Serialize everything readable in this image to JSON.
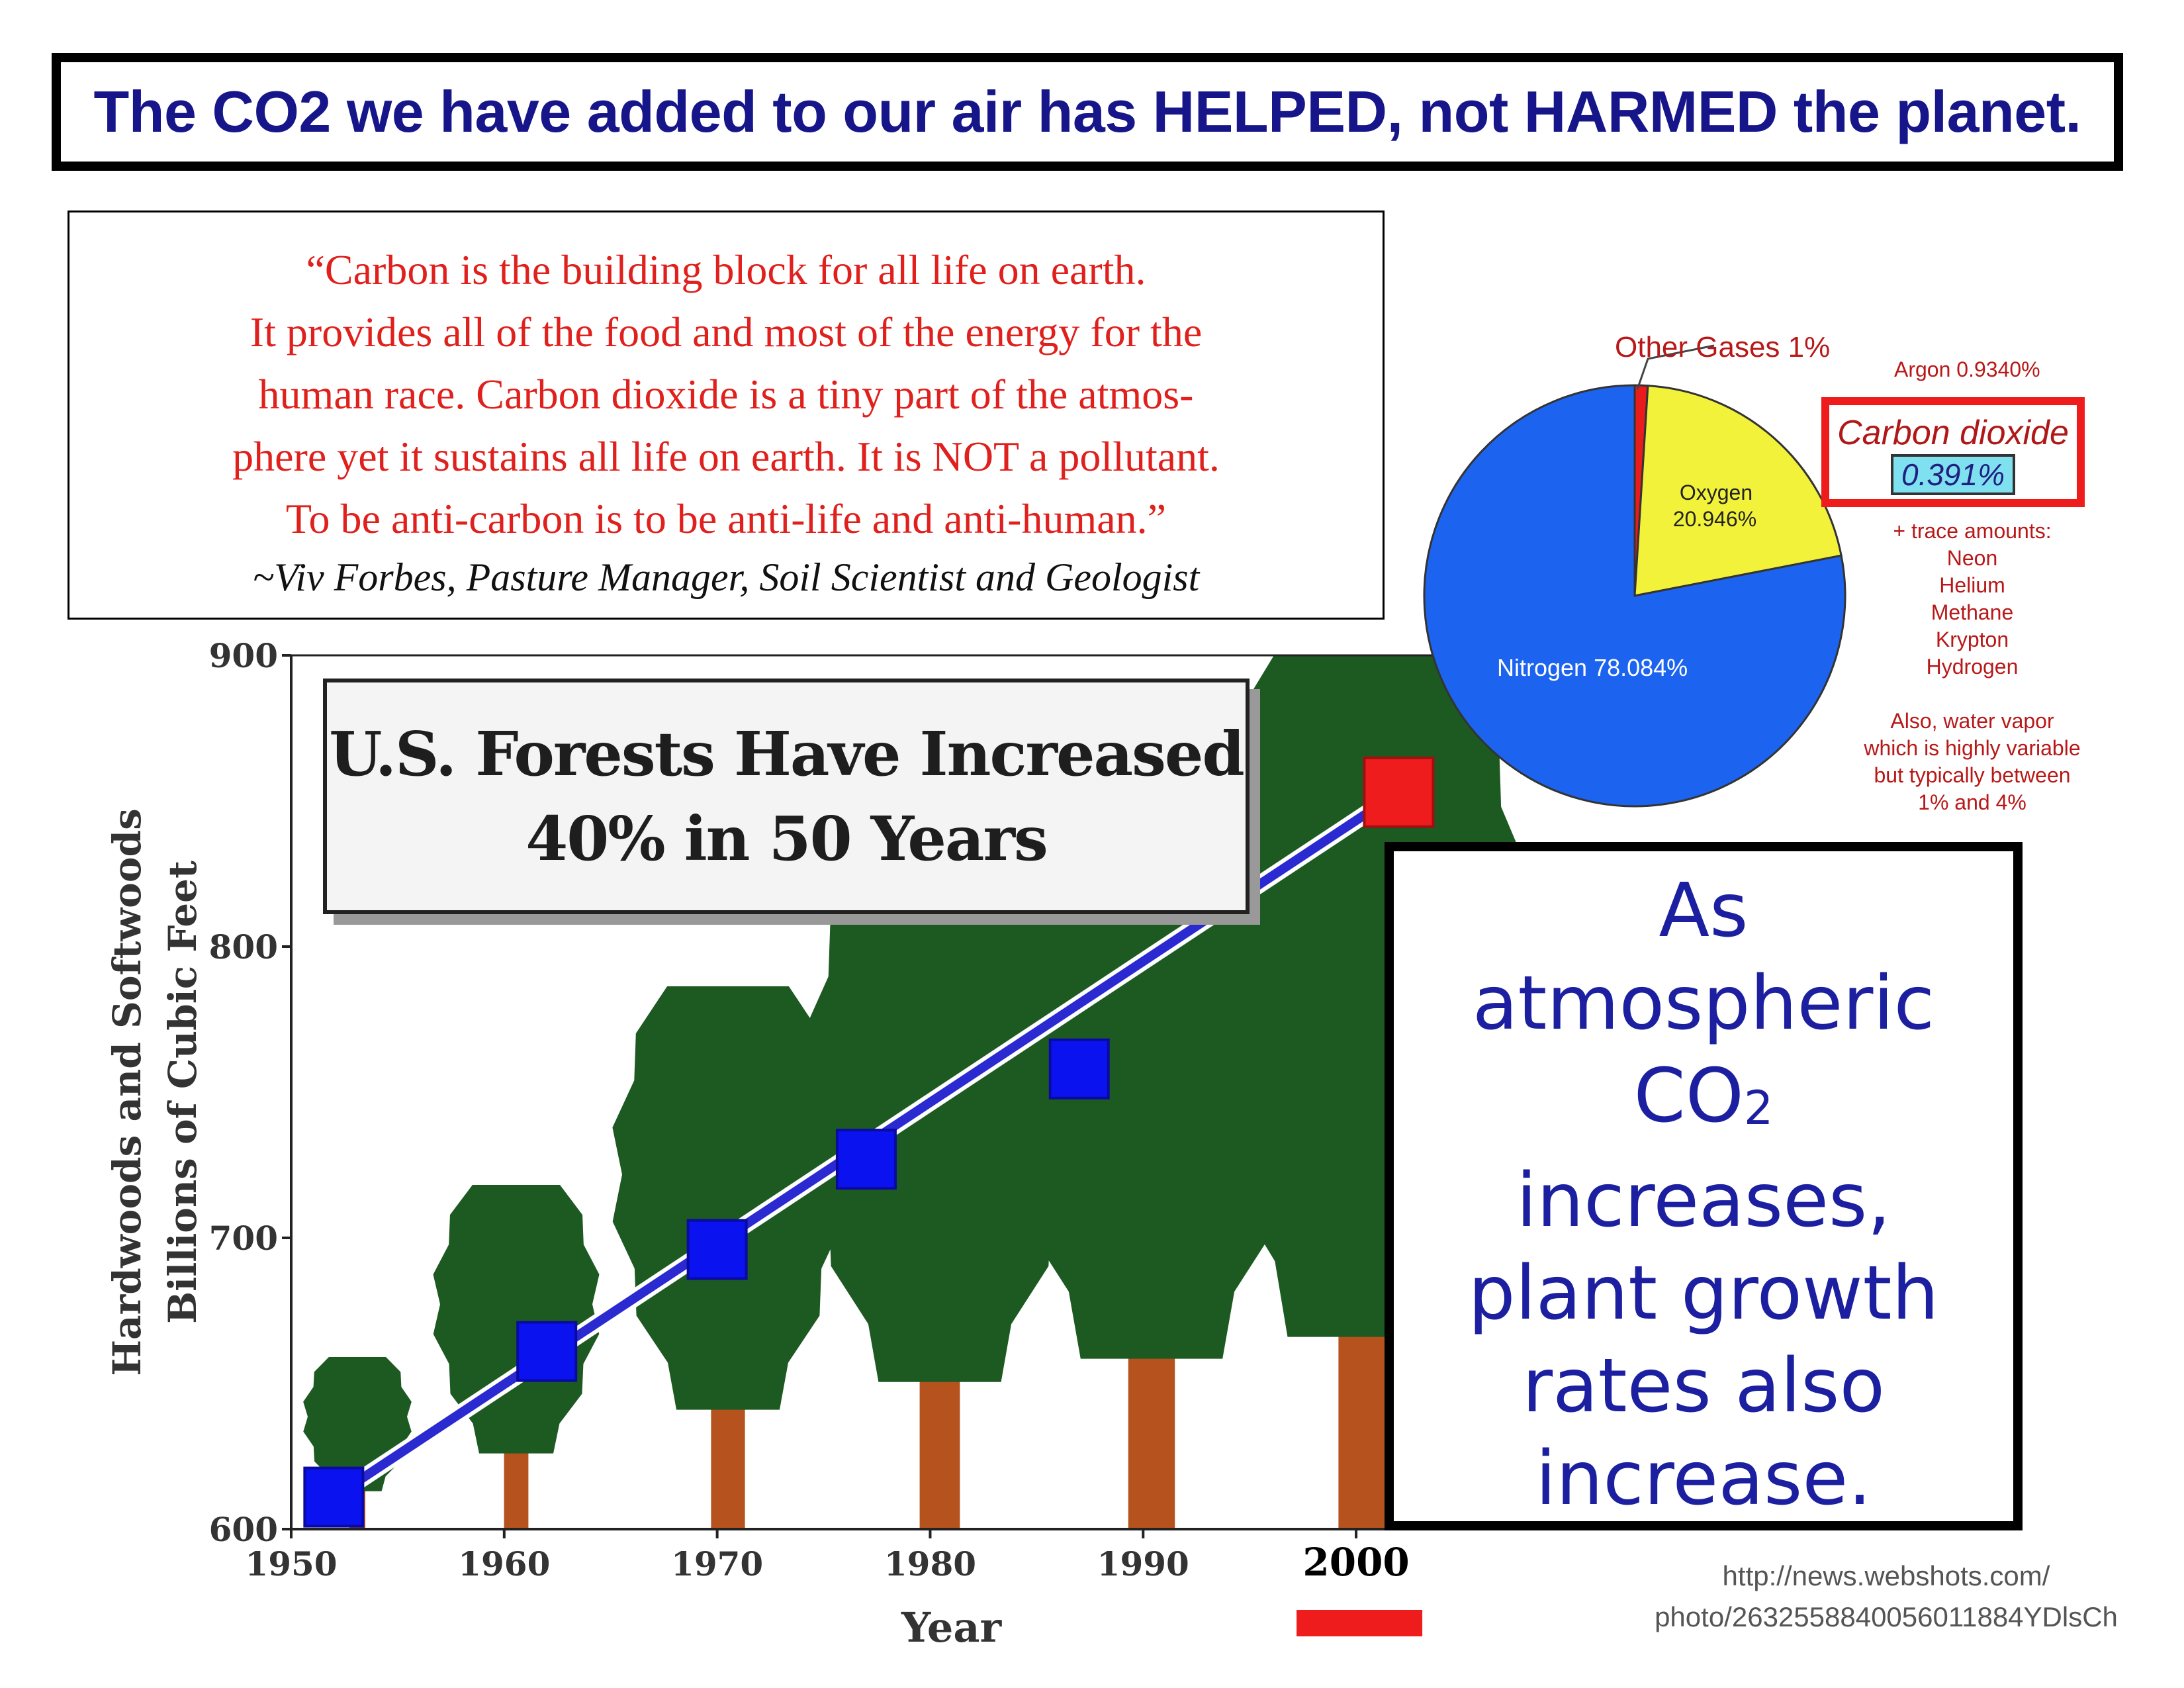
{
  "headline": "The CO2 we have added to our air has HELPED, not HARMED the planet.",
  "quote": {
    "lines": [
      "“Carbon is the building block for all life on earth.",
      "It provides all of the food and most of the energy for the",
      "human race. Carbon dioxide is a tiny part of the atmos-",
      "phere yet it sustains all life on earth. It is NOT a pollutant.",
      "To be anti-carbon is to be anti-life and anti-human.”"
    ],
    "attribution": "~Viv Forbes, Pasture Manager, Soil Scientist and Geologist"
  },
  "forest_box": {
    "line1": "U.S. Forests Have Increased",
    "line2": "40% in 50 Years"
  },
  "callout": {
    "lines": [
      "As",
      "atmospheric",
      "CO",
      "increases,",
      "plant growth",
      "rates also",
      "increase."
    ],
    "co2_subscript": "2"
  },
  "pie_labels": {
    "other": "Other Gases 1%",
    "argon": "Argon 0.9340%",
    "co2_label": "Carbon dioxide",
    "co2_value": "0.391%",
    "oxygen_name": "Oxygen",
    "oxygen_value": "20.946%",
    "nitrogen": "Nitrogen 78.084%",
    "trace": [
      "+ trace amounts:",
      "Neon",
      "Helium",
      "Methane",
      "Krypton",
      "Hydrogen",
      "",
      "Also, water vapor",
      "which is highly variable",
      "but typically between",
      "1% and 4%"
    ]
  },
  "source": [
    "http://news.webshots.com/",
    "photo/2632558840056011884YDlsCh"
  ],
  "colors": {
    "headline_text": "#16168a",
    "quote_text": "#e0201c",
    "trend_line": "#2a2ad0",
    "marker": "#0a12f0",
    "marker_highlight": "#ee1c1c",
    "nitrogen": "#1c64f0",
    "oxygen": "#f2f23a",
    "other": "#e81c1c",
    "tree_green": "#1d5a22",
    "trunk": "#b5521e"
  },
  "chart_data": [
    {
      "type": "line",
      "title": "U.S. Forests Have Increased 40% in 50 Years",
      "xlabel": "Year",
      "ylabel": [
        "Hardwoods and Softwoods",
        "Billions of Cubic Feet"
      ],
      "xlim": [
        1950,
        2005
      ],
      "ylim": [
        600,
        900
      ],
      "x_ticks": [
        "1950",
        "1960",
        "1970",
        "1980",
        "1990",
        "2000"
      ],
      "y_ticks": [
        "600",
        "700",
        "800",
        "900"
      ],
      "highlight_tick": "2000",
      "series": [
        {
          "points": [
            {
              "x": 1952,
              "y": 611
            },
            {
              "x": 1962,
              "y": 661
            },
            {
              "x": 1970,
              "y": 696
            },
            {
              "x": 1977,
              "y": 727
            },
            {
              "x": 1987,
              "y": 758
            },
            {
              "x": 2002,
              "y": 853
            }
          ]
        }
      ],
      "trend": {
        "from": {
          "x": 1952,
          "y": 611
        },
        "to": {
          "x": 2002,
          "y": 853
        }
      }
    },
    {
      "type": "pie",
      "slices": [
        {
          "label": "Nitrogen",
          "value": 78.084
        },
        {
          "label": "Oxygen",
          "value": 20.946
        },
        {
          "label": "Other Gases",
          "value": 1
        }
      ]
    }
  ]
}
